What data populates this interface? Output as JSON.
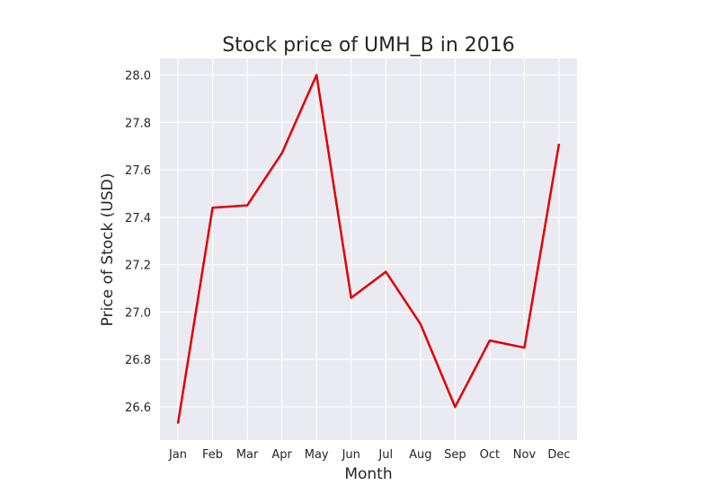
{
  "chart_data": {
    "type": "line",
    "title": "Stock price of UMH_B in 2016",
    "xlabel": "Month",
    "ylabel": "Price of Stock (USD)",
    "categories": [
      "Jan",
      "Feb",
      "Mar",
      "Apr",
      "May",
      "Jun",
      "Jul",
      "Aug",
      "Sep",
      "Oct",
      "Nov",
      "Dec"
    ],
    "series": [
      {
        "values": [
          26.53,
          27.44,
          27.45,
          27.67,
          28.0,
          27.06,
          27.17,
          26.95,
          26.6,
          26.88,
          26.85,
          27.71
        ]
      }
    ],
    "yticks": [
      "26.6",
      "26.8",
      "27.0",
      "27.2",
      "27.4",
      "27.6",
      "27.8",
      "28.0"
    ],
    "ylim": [
      26.46,
      28.07
    ],
    "grid": true,
    "line_color": "#e00000",
    "plot_background": "#eaeaf2",
    "grid_color": "#ffffff"
  }
}
